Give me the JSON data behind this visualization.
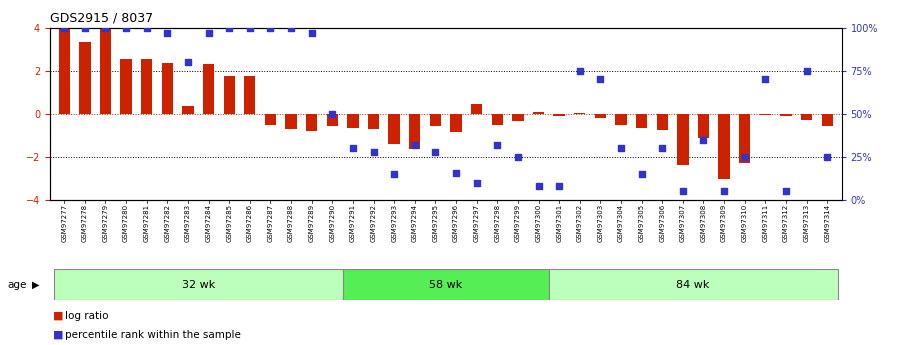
{
  "title": "GDS2915 / 8037",
  "samples": [
    "GSM97277",
    "GSM97278",
    "GSM97279",
    "GSM97280",
    "GSM97281",
    "GSM97282",
    "GSM97283",
    "GSM97284",
    "GSM97285",
    "GSM97286",
    "GSM97287",
    "GSM97288",
    "GSM97289",
    "GSM97290",
    "GSM97291",
    "GSM97292",
    "GSM97293",
    "GSM97294",
    "GSM97295",
    "GSM97296",
    "GSM97297",
    "GSM97298",
    "GSM97299",
    "GSM97300",
    "GSM97301",
    "GSM97302",
    "GSM97303",
    "GSM97304",
    "GSM97305",
    "GSM97306",
    "GSM97307",
    "GSM97308",
    "GSM97309",
    "GSM97310",
    "GSM97311",
    "GSM97312",
    "GSM97313",
    "GSM97314"
  ],
  "log_ratio": [
    3.95,
    3.35,
    3.95,
    2.55,
    2.55,
    2.35,
    0.35,
    2.3,
    1.75,
    1.75,
    -0.5,
    -0.7,
    -0.8,
    -0.55,
    -0.65,
    -0.7,
    -1.4,
    -1.65,
    -0.55,
    -0.85,
    0.45,
    -0.5,
    -0.35,
    0.1,
    -0.1,
    0.05,
    -0.2,
    -0.5,
    -0.65,
    -0.75,
    -2.35,
    -1.1,
    -3.0,
    -2.3,
    -0.05,
    -0.1,
    -0.3,
    -0.55
  ],
  "percentile": [
    100,
    100,
    100,
    100,
    100,
    97,
    80,
    97,
    100,
    100,
    100,
    100,
    97,
    50,
    30,
    28,
    15,
    32,
    28,
    16,
    10,
    32,
    25,
    8,
    8,
    75,
    70,
    30,
    15,
    30,
    5,
    35,
    5,
    25,
    70,
    5,
    75,
    25
  ],
  "groups": [
    {
      "label": "32 wk",
      "start": 0,
      "end": 14
    },
    {
      "label": "58 wk",
      "start": 14,
      "end": 24
    },
    {
      "label": "84 wk",
      "start": 24,
      "end": 38
    }
  ],
  "bar_color": "#cc2200",
  "dot_color": "#3333cc",
  "left_tick_color": "#cc2200",
  "ylim": [
    -4,
    4
  ],
  "y2lim": [
    0,
    100
  ],
  "yticks": [
    -4,
    -2,
    0,
    2,
    4
  ],
  "y2ticks": [
    0,
    25,
    50,
    75,
    100
  ],
  "y2ticklabels": [
    "0%",
    "25%",
    "50%",
    "75%",
    "100%"
  ],
  "bg_color": "#ffffff",
  "group_colors": [
    "#bbffbb",
    "#55ee55"
  ],
  "legend_bar_label": "log ratio",
  "legend_dot_label": "percentile rank within the sample",
  "age_label": "age"
}
